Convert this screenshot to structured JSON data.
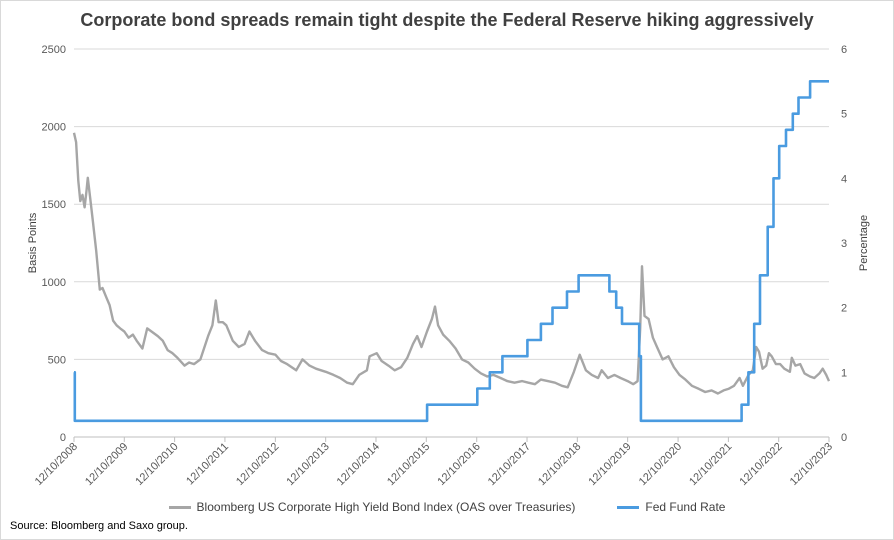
{
  "chart_data": {
    "type": "line",
    "title": "Corporate bond spreads remain tight despite the Federal Reserve hiking aggressively",
    "ylabel_left": "Basis Points",
    "ylabel_right": "Percentage",
    "ylim_left": [
      0,
      2500
    ],
    "ylim_right": [
      0,
      6
    ],
    "yticks_left": [
      "0",
      "500",
      "1000",
      "1500",
      "2000",
      "2500"
    ],
    "yticks_right": [
      "0",
      "1",
      "2",
      "3",
      "4",
      "5",
      "6"
    ],
    "xlim": [
      "2008-12-10",
      "2023-12-10"
    ],
    "xticks": [
      "12/10/2008",
      "12/10/2009",
      "12/10/2010",
      "12/10/2011",
      "12/10/2012",
      "12/10/2013",
      "12/10/2014",
      "12/10/2015",
      "12/10/2016",
      "12/10/2017",
      "12/10/2018",
      "12/10/2019",
      "12/10/2020",
      "12/10/2021",
      "12/10/2022",
      "12/10/2023"
    ],
    "grid": "horizontal",
    "legend_position": "bottom",
    "source": "Source: Bloomberg and Saxo group.",
    "series": [
      {
        "name": "Bloomberg US Corporate High Yield Bond Index (OAS over Treasuries)",
        "axis": "left",
        "color": "#a6a6a6",
        "points": [
          [
            "2008-12-10",
            1960
          ],
          [
            "2008-12-25",
            1900
          ],
          [
            "2009-01-10",
            1650
          ],
          [
            "2009-01-25",
            1520
          ],
          [
            "2009-02-10",
            1560
          ],
          [
            "2009-02-25",
            1480
          ],
          [
            "2009-03-10",
            1580
          ],
          [
            "2009-03-20",
            1670
          ],
          [
            "2009-04-05",
            1550
          ],
          [
            "2009-04-25",
            1400
          ],
          [
            "2009-05-20",
            1200
          ],
          [
            "2009-06-15",
            950
          ],
          [
            "2009-07-05",
            960
          ],
          [
            "2009-08-01",
            900
          ],
          [
            "2009-08-25",
            850
          ],
          [
            "2009-09-20",
            750
          ],
          [
            "2009-10-15",
            720
          ],
          [
            "2009-11-10",
            700
          ],
          [
            "2009-12-10",
            680
          ],
          [
            "2010-01-10",
            640
          ],
          [
            "2010-02-10",
            660
          ],
          [
            "2010-03-10",
            620
          ],
          [
            "2010-04-20",
            570
          ],
          [
            "2010-05-25",
            700
          ],
          [
            "2010-06-25",
            680
          ],
          [
            "2010-08-10",
            650
          ],
          [
            "2010-09-15",
            620
          ],
          [
            "2010-10-20",
            560
          ],
          [
            "2010-11-25",
            540
          ],
          [
            "2010-12-30",
            510
          ],
          [
            "2011-02-20",
            460
          ],
          [
            "2011-03-25",
            480
          ],
          [
            "2011-04-30",
            470
          ],
          [
            "2011-06-15",
            500
          ],
          [
            "2011-08-10",
            650
          ],
          [
            "2011-09-10",
            720
          ],
          [
            "2011-10-05",
            880
          ],
          [
            "2011-10-25",
            740
          ],
          [
            "2011-11-25",
            740
          ],
          [
            "2011-12-20",
            720
          ],
          [
            "2012-02-05",
            620
          ],
          [
            "2012-03-20",
            580
          ],
          [
            "2012-05-01",
            600
          ],
          [
            "2012-06-05",
            680
          ],
          [
            "2012-07-15",
            620
          ],
          [
            "2012-09-05",
            560
          ],
          [
            "2012-10-20",
            540
          ],
          [
            "2012-12-10",
            530
          ],
          [
            "2013-01-20",
            490
          ],
          [
            "2013-03-05",
            470
          ],
          [
            "2013-05-10",
            430
          ],
          [
            "2013-06-25",
            500
          ],
          [
            "2013-08-15",
            460
          ],
          [
            "2013-10-01",
            440
          ],
          [
            "2013-12-10",
            420
          ],
          [
            "2014-02-05",
            400
          ],
          [
            "2014-03-25",
            380
          ],
          [
            "2014-05-15",
            350
          ],
          [
            "2014-06-25",
            340
          ],
          [
            "2014-08-10",
            400
          ],
          [
            "2014-10-05",
            430
          ],
          [
            "2014-10-25",
            520
          ],
          [
            "2014-12-15",
            540
          ],
          [
            "2015-01-20",
            490
          ],
          [
            "2015-03-10",
            460
          ],
          [
            "2015-04-25",
            430
          ],
          [
            "2015-06-10",
            450
          ],
          [
            "2015-07-25",
            510
          ],
          [
            "2015-09-05",
            600
          ],
          [
            "2015-10-05",
            650
          ],
          [
            "2015-11-05",
            580
          ],
          [
            "2015-12-15",
            680
          ],
          [
            "2016-01-20",
            760
          ],
          [
            "2016-02-11",
            840
          ],
          [
            "2016-03-05",
            720
          ],
          [
            "2016-04-10",
            660
          ],
          [
            "2016-05-25",
            620
          ],
          [
            "2016-07-10",
            570
          ],
          [
            "2016-08-25",
            500
          ],
          [
            "2016-10-10",
            480
          ],
          [
            "2016-11-25",
            440
          ],
          [
            "2017-01-10",
            410
          ],
          [
            "2017-02-25",
            390
          ],
          [
            "2017-04-10",
            400
          ],
          [
            "2017-06-01",
            380
          ],
          [
            "2017-07-20",
            360
          ],
          [
            "2017-09-10",
            350
          ],
          [
            "2017-11-05",
            360
          ],
          [
            "2017-12-20",
            350
          ],
          [
            "2018-02-05",
            340
          ],
          [
            "2018-03-20",
            370
          ],
          [
            "2018-05-10",
            360
          ],
          [
            "2018-07-01",
            350
          ],
          [
            "2018-08-20",
            330
          ],
          [
            "2018-10-01",
            320
          ],
          [
            "2018-11-15",
            420
          ],
          [
            "2018-12-27",
            530
          ],
          [
            "2019-02-10",
            430
          ],
          [
            "2019-03-25",
            400
          ],
          [
            "2019-05-10",
            380
          ],
          [
            "2019-06-05",
            430
          ],
          [
            "2019-07-20",
            380
          ],
          [
            "2019-09-05",
            400
          ],
          [
            "2019-10-20",
            380
          ],
          [
            "2019-12-10",
            360
          ],
          [
            "2020-01-20",
            340
          ],
          [
            "2020-02-20",
            360
          ],
          [
            "2020-03-10",
            700
          ],
          [
            "2020-03-23",
            1100
          ],
          [
            "2020-04-10",
            780
          ],
          [
            "2020-05-10",
            760
          ],
          [
            "2020-06-10",
            640
          ],
          [
            "2020-07-10",
            580
          ],
          [
            "2020-08-20",
            500
          ],
          [
            "2020-10-01",
            520
          ],
          [
            "2020-11-10",
            450
          ],
          [
            "2020-12-20",
            400
          ],
          [
            "2021-02-01",
            370
          ],
          [
            "2021-03-20",
            330
          ],
          [
            "2021-05-10",
            310
          ],
          [
            "2021-06-25",
            290
          ],
          [
            "2021-08-10",
            300
          ],
          [
            "2021-09-25",
            280
          ],
          [
            "2021-11-05",
            300
          ],
          [
            "2021-12-10",
            310
          ],
          [
            "2022-01-20",
            330
          ],
          [
            "2022-03-01",
            380
          ],
          [
            "2022-03-25",
            330
          ],
          [
            "2022-05-05",
            400
          ],
          [
            "2022-06-05",
            430
          ],
          [
            "2022-06-30",
            580
          ],
          [
            "2022-07-20",
            550
          ],
          [
            "2022-08-15",
            440
          ],
          [
            "2022-09-10",
            460
          ],
          [
            "2022-09-30",
            540
          ],
          [
            "2022-10-20",
            520
          ],
          [
            "2022-11-20",
            470
          ],
          [
            "2022-12-20",
            470
          ],
          [
            "2023-01-20",
            440
          ],
          [
            "2023-03-01",
            420
          ],
          [
            "2023-03-15",
            510
          ],
          [
            "2023-04-10",
            460
          ],
          [
            "2023-05-15",
            470
          ],
          [
            "2023-06-15",
            410
          ],
          [
            "2023-07-25",
            390
          ],
          [
            "2023-08-25",
            380
          ],
          [
            "2023-10-01",
            410
          ],
          [
            "2023-10-25",
            440
          ],
          [
            "2023-11-20",
            400
          ],
          [
            "2023-12-10",
            360
          ]
        ]
      },
      {
        "name": "Fed Fund Rate",
        "axis": "right",
        "color": "#4a9be0",
        "step": true,
        "points": [
          [
            "2008-12-10",
            1.0
          ],
          [
            "2008-12-16",
            0.25
          ],
          [
            "2015-12-16",
            0.5
          ],
          [
            "2016-12-14",
            0.75
          ],
          [
            "2017-03-15",
            1.0
          ],
          [
            "2017-06-14",
            1.25
          ],
          [
            "2017-12-13",
            1.5
          ],
          [
            "2018-03-21",
            1.75
          ],
          [
            "2018-06-13",
            2.0
          ],
          [
            "2018-09-26",
            2.25
          ],
          [
            "2018-12-19",
            2.5
          ],
          [
            "2019-07-31",
            2.25
          ],
          [
            "2019-09-18",
            2.0
          ],
          [
            "2019-10-30",
            1.75
          ],
          [
            "2020-03-03",
            1.25
          ],
          [
            "2020-03-15",
            0.25
          ],
          [
            "2022-03-16",
            0.5
          ],
          [
            "2022-05-04",
            1.0
          ],
          [
            "2022-06-15",
            1.75
          ],
          [
            "2022-07-27",
            2.5
          ],
          [
            "2022-09-21",
            3.25
          ],
          [
            "2022-11-02",
            4.0
          ],
          [
            "2022-12-14",
            4.5
          ],
          [
            "2023-02-01",
            4.75
          ],
          [
            "2023-03-22",
            5.0
          ],
          [
            "2023-05-03",
            5.25
          ],
          [
            "2023-07-26",
            5.5
          ],
          [
            "2023-12-10",
            5.5
          ]
        ]
      }
    ]
  }
}
